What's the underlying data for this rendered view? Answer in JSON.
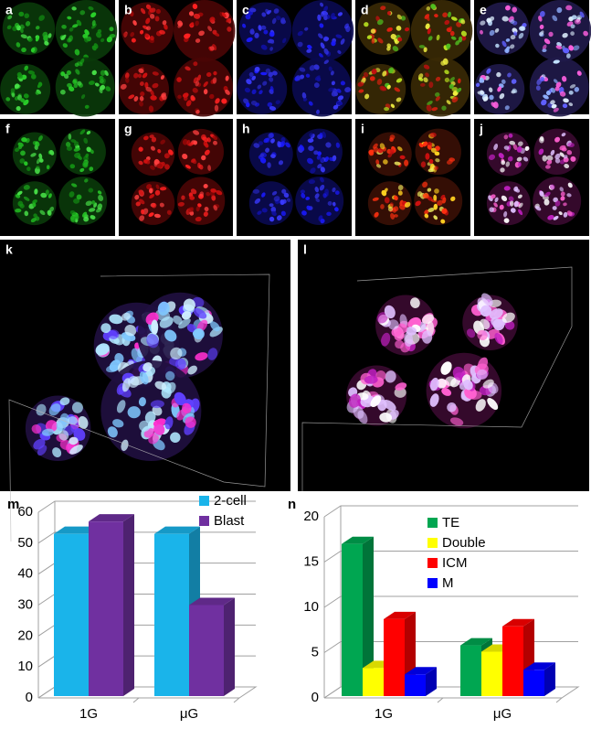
{
  "panel_labels": [
    "a",
    "b",
    "c",
    "d",
    "e",
    "f",
    "g",
    "h",
    "i",
    "j",
    "k",
    "l"
  ],
  "chart_data": [
    {
      "type": "bar3d",
      "panel_label": "m",
      "categories": [
        "1G",
        "μG"
      ],
      "series": [
        {
          "name": "2-cell",
          "color": "#1ab4ea",
          "values": [
            53,
            53
          ]
        },
        {
          "name": "Blast",
          "color": "#7030a0",
          "values": [
            57,
            30
          ]
        }
      ],
      "ylim": [
        0,
        60
      ],
      "yticks": [
        0,
        10,
        20,
        30,
        40,
        50,
        60
      ],
      "grid": true,
      "legend": "top-right"
    },
    {
      "type": "bar3d",
      "panel_label": "n",
      "categories": [
        "1G",
        "μG"
      ],
      "series": [
        {
          "name": "TE",
          "color": "#00a651",
          "values": [
            17,
            5.8
          ]
        },
        {
          "name": "Double",
          "color": "#ffff00",
          "values": [
            3.3,
            5.1
          ]
        },
        {
          "name": "ICM",
          "color": "#ff0000",
          "values": [
            8.7,
            7.9
          ]
        },
        {
          "name": "M",
          "color": "#0000ff",
          "values": [
            2.6,
            3.1
          ]
        }
      ],
      "ylim": [
        0,
        20
      ],
      "yticks": [
        0,
        5,
        10,
        15,
        20
      ],
      "grid": true,
      "legend": "top-right"
    }
  ]
}
